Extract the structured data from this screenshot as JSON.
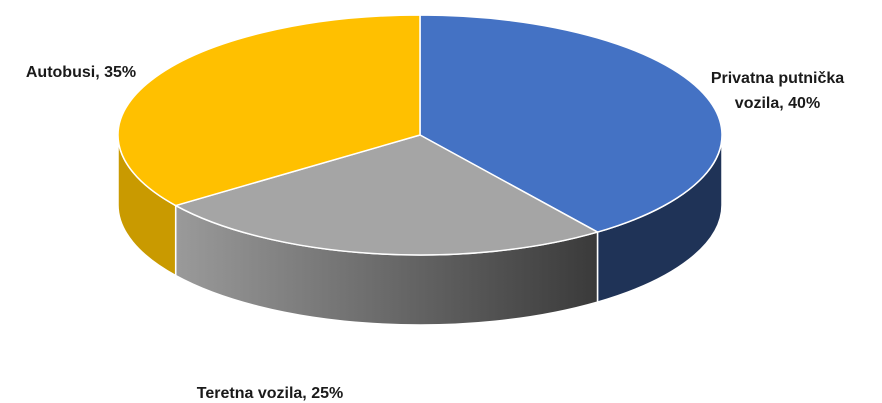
{
  "chart_data": {
    "type": "pie",
    "categories": [
      "Privatna putnička vozila",
      "Teretna vozila",
      "Autobusi"
    ],
    "values": [
      40,
      25,
      35
    ],
    "value_labels": [
      "40%",
      "25%",
      "35%"
    ],
    "colors": [
      "#4472c4",
      "#a5a5a5",
      "#ffc000"
    ],
    "side_colors": [
      "#1f3357",
      "#555555",
      "#c99a00"
    ]
  }
}
